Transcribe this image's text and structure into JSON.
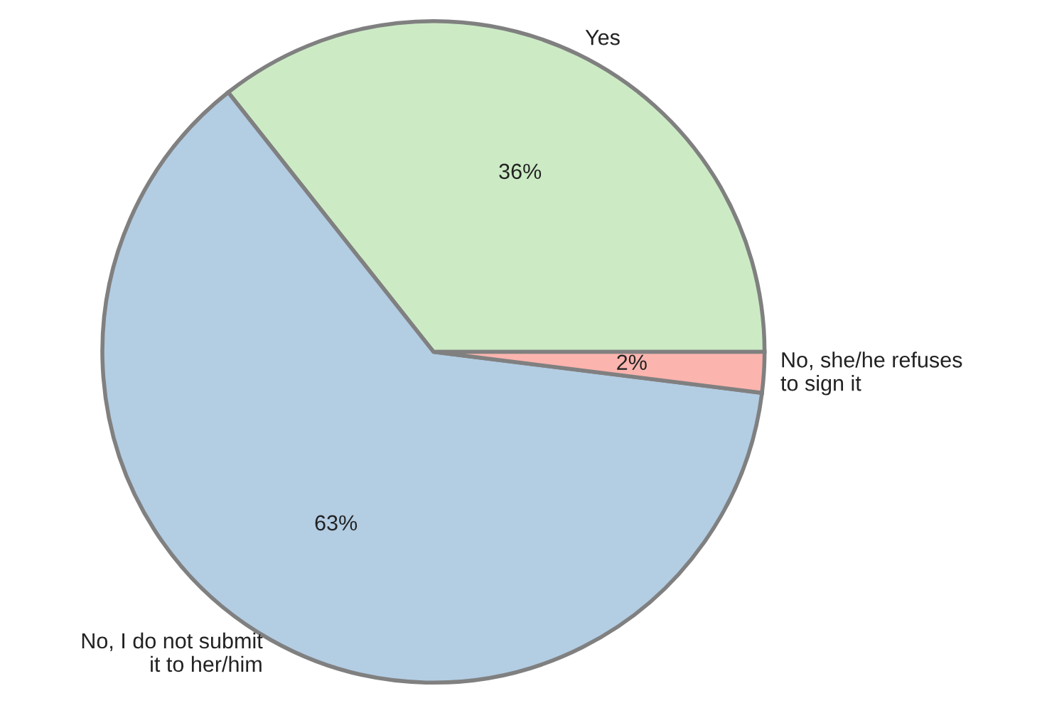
{
  "chart_data": {
    "type": "pie",
    "categories": [
      "Yes",
      "No, I do not submit\nit to her/him",
      "No, she/he refuses\nto sign it"
    ],
    "values": [
      36,
      63,
      2
    ],
    "colors": [
      "#ccebc5",
      "#b3cde3",
      "#fbb4ae"
    ],
    "value_labels": [
      "36%",
      "63%",
      "2%"
    ]
  }
}
